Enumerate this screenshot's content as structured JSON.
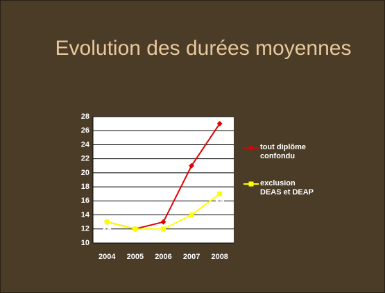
{
  "chart_data": {
    "type": "line",
    "title": "Evolution des durées moyennes",
    "categories": [
      "2004",
      "2005",
      "2006",
      "2007",
      "2008"
    ],
    "series": [
      {
        "name": "tout diplôme confondu",
        "color": "#e00000",
        "marker": "diamond",
        "labels": false,
        "values": [
          13,
          12,
          13,
          21,
          27
        ]
      },
      {
        "name": "exclusion DEAS et DEAP",
        "color": "#ffff00",
        "marker": "square",
        "labels": true,
        "values": [
          13,
          12,
          12,
          14,
          17
        ]
      }
    ],
    "ylim": [
      10,
      28
    ],
    "yticks": [
      10,
      12,
      14,
      16,
      18,
      20,
      22,
      24,
      26,
      28
    ],
    "grid": true,
    "legend": "right"
  }
}
